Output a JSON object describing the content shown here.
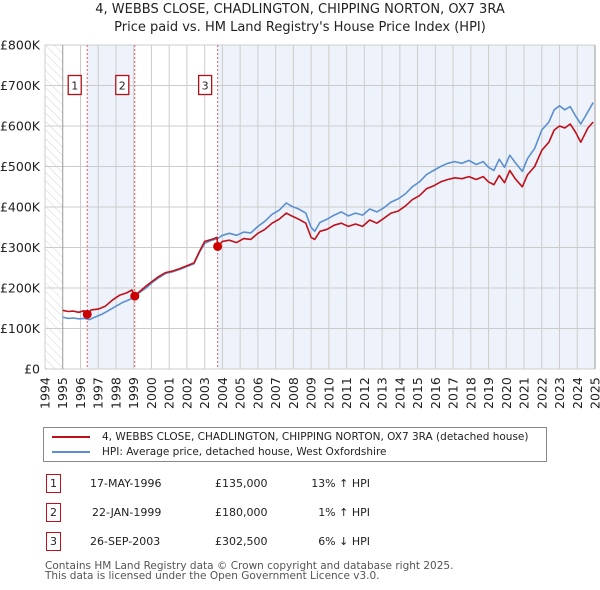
{
  "header": {
    "title": "4, WEBBS CLOSE, CHADLINGTON, CHIPPING NORTON, OX7 3RA",
    "subtitle": "Price paid vs. HM Land Registry's House Price Index (HPI)"
  },
  "colors": {
    "property_line": "#c0101a",
    "hpi_line": "#5b8fcf",
    "shade": "#eef3fb",
    "sale_marker": "#cc0000",
    "vline": "#e06060",
    "grid": "#cccccc"
  },
  "chart_data": {
    "type": "line",
    "title": "Price paid vs. HM Land Registry's House Price Index (HPI)",
    "xlabel": "",
    "ylabel": "",
    "xlim": [
      1994,
      2025
    ],
    "ylim": [
      0,
      800000
    ],
    "grid": true,
    "y_ticks": [
      {
        "value": 0,
        "label": "£0"
      },
      {
        "value": 100000,
        "label": "£100K"
      },
      {
        "value": 200000,
        "label": "£200K"
      },
      {
        "value": 300000,
        "label": "£300K"
      },
      {
        "value": 400000,
        "label": "£400K"
      },
      {
        "value": 500000,
        "label": "£500K"
      },
      {
        "value": 600000,
        "label": "£600K"
      },
      {
        "value": 700000,
        "label": "£700K"
      },
      {
        "value": 800000,
        "label": "£800K"
      }
    ],
    "x_ticks": [
      "1994",
      "1995",
      "1996",
      "1997",
      "1998",
      "1999",
      "2000",
      "2001",
      "2002",
      "2003",
      "2004",
      "2005",
      "2006",
      "2007",
      "2008",
      "2009",
      "2010",
      "2011",
      "2012",
      "2013",
      "2014",
      "2015",
      "2016",
      "2017",
      "2018",
      "2019",
      "2020",
      "2021",
      "2022",
      "2023",
      "2024",
      "2025"
    ],
    "hatched_region": [
      1994,
      1995
    ],
    "shaded_regions": [
      [
        1996.38,
        1999.06
      ],
      [
        2003.73,
        2025
      ]
    ],
    "legend_placement": "below",
    "series": [
      {
        "name": "4, WEBBS CLOSE, CHADLINGTON, CHIPPING NORTON, OX7 3RA (detached house)",
        "color": "#c0101a",
        "x": [
          1995.0,
          1995.3,
          1995.6,
          1995.9,
          1996.2,
          1996.38,
          1996.6,
          1997.0,
          1997.4,
          1997.8,
          1998.2,
          1998.6,
          1998.9,
          1999.06,
          1999.3,
          1999.7,
          2000.0,
          2000.4,
          2000.8,
          2001.2,
          2001.6,
          2002.0,
          2002.4,
          2002.7,
          2003.0,
          2003.4,
          2003.7,
          2003.73,
          2004.0,
          2004.4,
          2004.8,
          2005.2,
          2005.6,
          2006.0,
          2006.4,
          2006.8,
          2007.2,
          2007.6,
          2007.9,
          2008.3,
          2008.7,
          2009.0,
          2009.2,
          2009.5,
          2009.9,
          2010.3,
          2010.7,
          2011.1,
          2011.5,
          2011.9,
          2012.3,
          2012.7,
          2013.1,
          2013.5,
          2013.9,
          2014.3,
          2014.7,
          2015.1,
          2015.5,
          2015.9,
          2016.3,
          2016.7,
          2017.1,
          2017.5,
          2017.9,
          2018.3,
          2018.7,
          2019.0,
          2019.3,
          2019.6,
          2019.9,
          2020.2,
          2020.5,
          2020.9,
          2021.2,
          2021.6,
          2022.0,
          2022.4,
          2022.7,
          2023.0,
          2023.3,
          2023.6,
          2023.9,
          2024.2,
          2024.6,
          2024.9
        ],
        "y": [
          145000,
          142000,
          143000,
          140000,
          144000,
          135000,
          146000,
          148000,
          155000,
          170000,
          182000,
          188000,
          195000,
          180000,
          190000,
          205000,
          215000,
          228000,
          238000,
          242000,
          248000,
          255000,
          262000,
          290000,
          315000,
          320000,
          325000,
          302500,
          315000,
          318000,
          312000,
          322000,
          320000,
          335000,
          345000,
          360000,
          370000,
          385000,
          378000,
          370000,
          360000,
          325000,
          320000,
          340000,
          345000,
          355000,
          360000,
          352000,
          358000,
          352000,
          368000,
          360000,
          372000,
          385000,
          390000,
          402000,
          418000,
          428000,
          445000,
          452000,
          462000,
          468000,
          472000,
          470000,
          475000,
          468000,
          475000,
          462000,
          455000,
          478000,
          460000,
          490000,
          470000,
          450000,
          480000,
          500000,
          540000,
          560000,
          590000,
          600000,
          595000,
          605000,
          585000,
          560000,
          595000,
          610000
        ]
      },
      {
        "name": "HPI: Average price, detached house, West Oxfordshire",
        "color": "#5b8fcf",
        "x": [
          1995.0,
          1995.3,
          1995.6,
          1995.9,
          1996.2,
          1996.5,
          1996.8,
          1997.2,
          1997.6,
          1998.0,
          1998.4,
          1998.8,
          1999.06,
          1999.3,
          1999.7,
          2000.0,
          2000.4,
          2000.8,
          2001.2,
          2001.6,
          2002.0,
          2002.4,
          2002.7,
          2003.0,
          2003.4,
          2003.73,
          2004.0,
          2004.4,
          2004.8,
          2005.2,
          2005.6,
          2006.0,
          2006.4,
          2006.8,
          2007.2,
          2007.6,
          2007.9,
          2008.3,
          2008.7,
          2009.0,
          2009.2,
          2009.5,
          2009.9,
          2010.3,
          2010.7,
          2011.1,
          2011.5,
          2011.9,
          2012.3,
          2012.7,
          2013.1,
          2013.5,
          2013.9,
          2014.3,
          2014.7,
          2015.1,
          2015.5,
          2015.9,
          2016.3,
          2016.7,
          2017.1,
          2017.5,
          2017.9,
          2018.3,
          2018.7,
          2019.0,
          2019.3,
          2019.6,
          2019.9,
          2020.2,
          2020.5,
          2020.9,
          2021.2,
          2021.6,
          2022.0,
          2022.4,
          2022.7,
          2023.0,
          2023.3,
          2023.6,
          2023.9,
          2024.2,
          2024.6,
          2024.9
        ],
        "y": [
          128000,
          125000,
          126000,
          124000,
          125000,
          122000,
          128000,
          135000,
          145000,
          155000,
          165000,
          172000,
          178000,
          188000,
          200000,
          212000,
          225000,
          236000,
          240000,
          246000,
          253000,
          260000,
          288000,
          310000,
          318000,
          322000,
          330000,
          335000,
          330000,
          338000,
          336000,
          352000,
          365000,
          382000,
          392000,
          410000,
          402000,
          395000,
          385000,
          350000,
          340000,
          362000,
          370000,
          380000,
          388000,
          378000,
          385000,
          380000,
          395000,
          388000,
          398000,
          412000,
          420000,
          432000,
          450000,
          462000,
          480000,
          490000,
          500000,
          508000,
          512000,
          508000,
          515000,
          505000,
          512000,
          498000,
          490000,
          518000,
          498000,
          528000,
          510000,
          488000,
          520000,
          545000,
          590000,
          610000,
          640000,
          650000,
          640000,
          648000,
          625000,
          605000,
          635000,
          658000
        ]
      }
    ],
    "sales": [
      {
        "marker": "1",
        "x": 1996.38,
        "y": 135000
      },
      {
        "marker": "2",
        "x": 1999.06,
        "y": 180000
      },
      {
        "marker": "3",
        "x": 2003.73,
        "y": 302500
      }
    ],
    "marker_label_value": 700000
  },
  "legend": {
    "items": [
      {
        "label": "4, WEBBS CLOSE, CHADLINGTON, CHIPPING NORTON, OX7 3RA (detached house)",
        "color": "#c0101a"
      },
      {
        "label": "HPI: Average price, detached house, West Oxfordshire",
        "color": "#5b8fcf"
      }
    ]
  },
  "sales_table": [
    {
      "num": "1",
      "date": "17-MAY-1996",
      "price": "£135,000",
      "hpi": "13% ↑ HPI"
    },
    {
      "num": "2",
      "date": "22-JAN-1999",
      "price": "£180,000",
      "hpi": "1% ↑ HPI"
    },
    {
      "num": "3",
      "date": "26-SEP-2003",
      "price": "£302,500",
      "hpi": "6% ↓ HPI"
    }
  ],
  "footer": {
    "line1": "Contains HM Land Registry data © Crown copyright and database right 2025.",
    "line2": "This data is licensed under the Open Government Licence v3.0."
  }
}
